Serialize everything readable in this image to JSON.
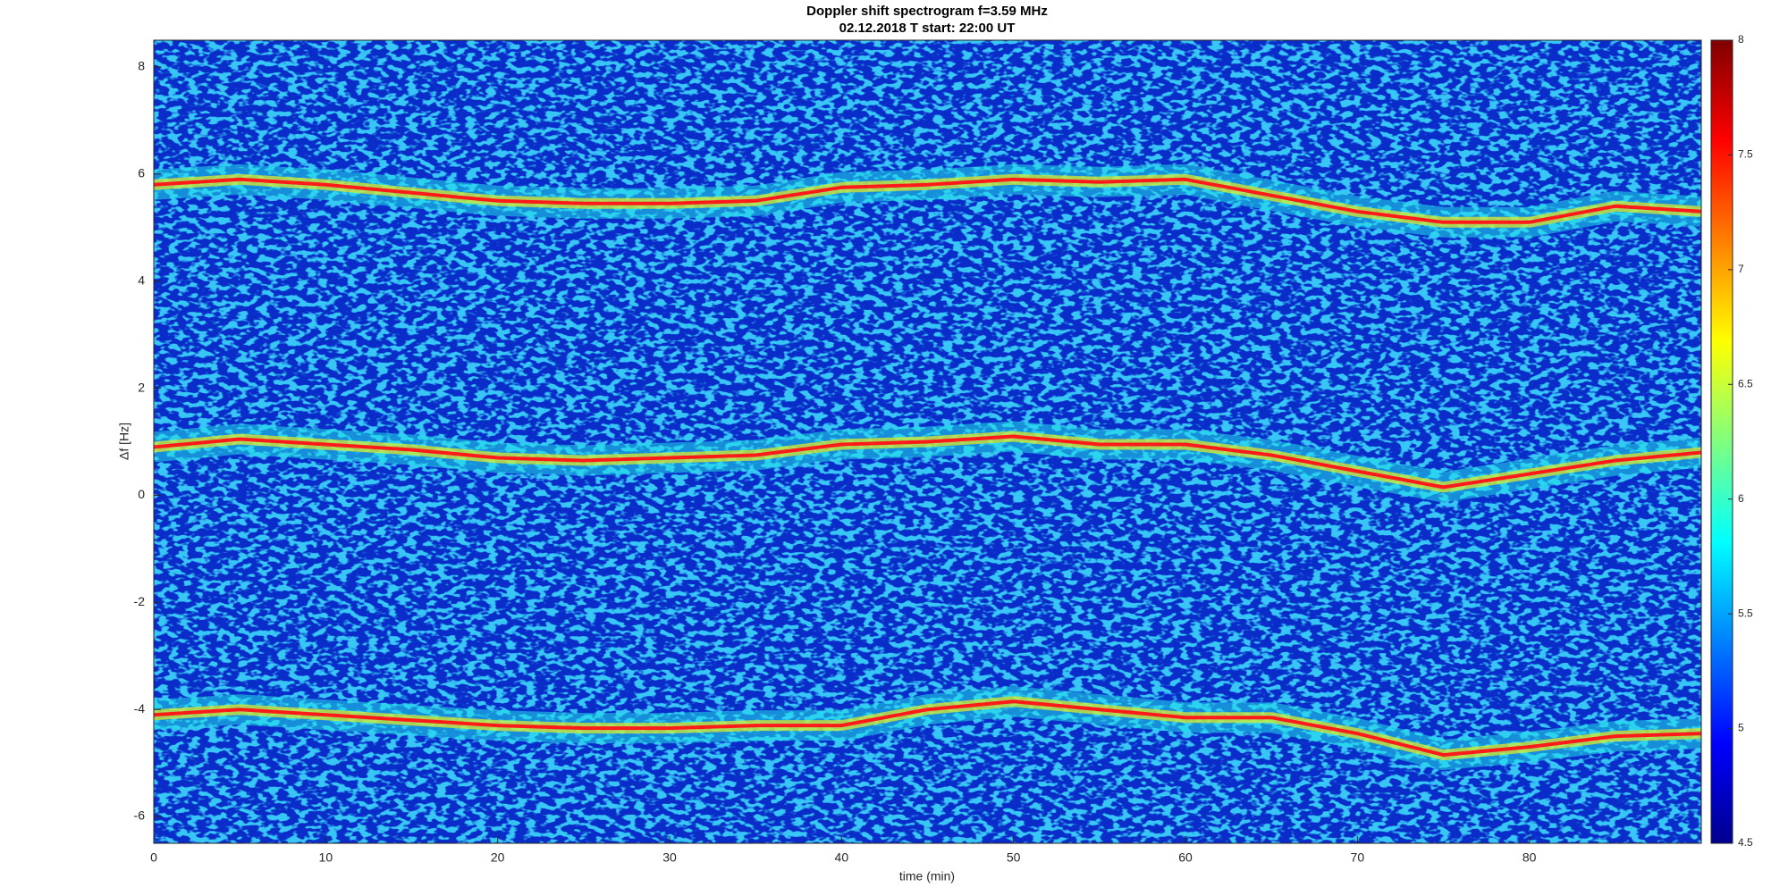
{
  "chart_data": {
    "type": "spectrogram",
    "title": "Doppler shift spectrogram f=3.59 MHz",
    "subtitle": "02.12.2018   T start: 22:00 UT",
    "xlabel": "time (min)",
    "ylabel": "Δf [Hz]",
    "x": [
      0,
      5,
      10,
      15,
      20,
      25,
      30,
      35,
      40,
      45,
      50,
      55,
      60,
      65,
      70,
      75,
      80,
      85,
      90
    ],
    "series": [
      {
        "color": "#ff1a1a",
        "values": [
          5.8,
          5.9,
          5.8,
          5.65,
          5.5,
          5.45,
          5.45,
          5.5,
          5.75,
          5.8,
          5.9,
          5.85,
          5.9,
          5.6,
          5.3,
          5.1,
          5.1,
          5.4,
          5.3
        ]
      },
      {
        "color": "#ff1a1a",
        "values": [
          0.9,
          1.05,
          0.95,
          0.85,
          0.7,
          0.65,
          0.7,
          0.75,
          0.95,
          1.0,
          1.1,
          0.95,
          0.95,
          0.75,
          0.45,
          0.15,
          0.4,
          0.65,
          0.8
        ]
      },
      {
        "color": "#ff1a1a",
        "values": [
          -4.1,
          -4.0,
          -4.1,
          -4.2,
          -4.3,
          -4.35,
          -4.35,
          -4.3,
          -4.3,
          -4.0,
          -3.85,
          -4.0,
          -4.15,
          -4.15,
          -4.45,
          -4.85,
          -4.7,
          -4.5,
          -4.45
        ]
      }
    ],
    "xlim": [
      0,
      90
    ],
    "xticks": [
      0,
      10,
      20,
      30,
      40,
      50,
      60,
      70,
      80
    ],
    "ylim": [
      -6.5,
      8.5
    ],
    "yticks": [
      -6,
      -4,
      -2,
      0,
      2,
      4,
      6,
      8
    ],
    "colorbar": {
      "colormap": "jet",
      "lim": [
        4.5,
        8
      ],
      "ticks": [
        4.5,
        5,
        5.5,
        6,
        6.5,
        7,
        7.5,
        8
      ]
    }
  }
}
